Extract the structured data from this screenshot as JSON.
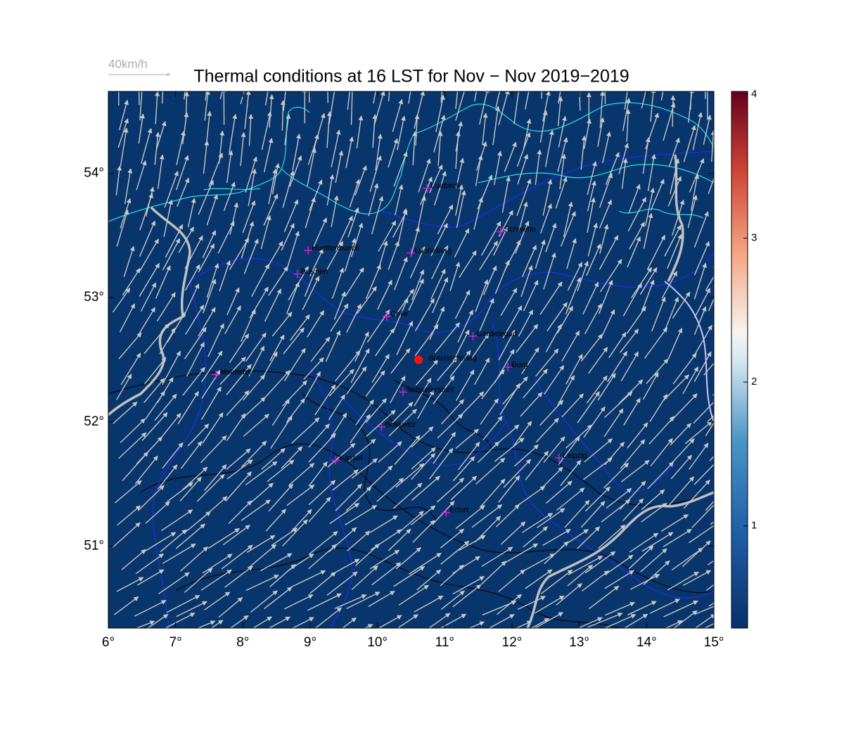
{
  "title": "Thermal conditions at 16 LST for Nov − Nov  2019−2019",
  "wind_scale": "40km/h",
  "map": {
    "xlim": [
      6,
      15
    ],
    "ylim": [
      50.34,
      54.66
    ],
    "xticks": [
      {
        "value": 6,
        "label": "6°"
      },
      {
        "value": 7,
        "label": "7°"
      },
      {
        "value": 8,
        "label": "8°"
      },
      {
        "value": 9,
        "label": "9°"
      },
      {
        "value": 10,
        "label": "10°"
      },
      {
        "value": 11,
        "label": "11°"
      },
      {
        "value": 12,
        "label": "12°"
      },
      {
        "value": 13,
        "label": "13°"
      },
      {
        "value": 14,
        "label": "14°"
      },
      {
        "value": 15,
        "label": "15°"
      }
    ],
    "yticks": [
      {
        "value": 51,
        "label": "51°"
      },
      {
        "value": 52,
        "label": "52°"
      },
      {
        "value": 53,
        "label": "53°"
      },
      {
        "value": 54,
        "label": "54°"
      }
    ]
  },
  "colorbar": {
    "lim": [
      0.29,
      4.02
    ],
    "ticks": [
      1,
      2,
      3,
      4
    ]
  },
  "site": {
    "name": "Braunschweig",
    "lon": 10.61,
    "lat": 52.5
  },
  "cities": [
    {
      "name": "Luebeck",
      "lon": 10.74,
      "lat": 53.88
    },
    {
      "name": "Schwerin",
      "lon": 11.83,
      "lat": 53.53
    },
    {
      "name": "Huettenbusch",
      "lon": 8.97,
      "lat": 53.38
    },
    {
      "name": "Lueneburg",
      "lon": 10.5,
      "lat": 53.36
    },
    {
      "name": "Bremen",
      "lon": 8.81,
      "lat": 53.19
    },
    {
      "name": "Celle",
      "lon": 10.14,
      "lat": 52.85
    },
    {
      "name": "Gardelegen",
      "lon": 11.42,
      "lat": 52.69
    },
    {
      "name": "Burg",
      "lon": 11.94,
      "lat": 52.44
    },
    {
      "name": "Muenster",
      "lon": 7.6,
      "lat": 52.38
    },
    {
      "name": "Schaeferstuhl",
      "lon": 10.38,
      "lat": 52.24
    },
    {
      "name": "Bockwitz",
      "lon": 10.06,
      "lat": 51.96
    },
    {
      "name": "Kassel",
      "lon": 9.38,
      "lat": 51.69
    },
    {
      "name": "Leipzig",
      "lon": 12.7,
      "lat": 51.71
    },
    {
      "name": "Erfurt",
      "lon": 11.02,
      "lat": 51.27
    }
  ]
}
